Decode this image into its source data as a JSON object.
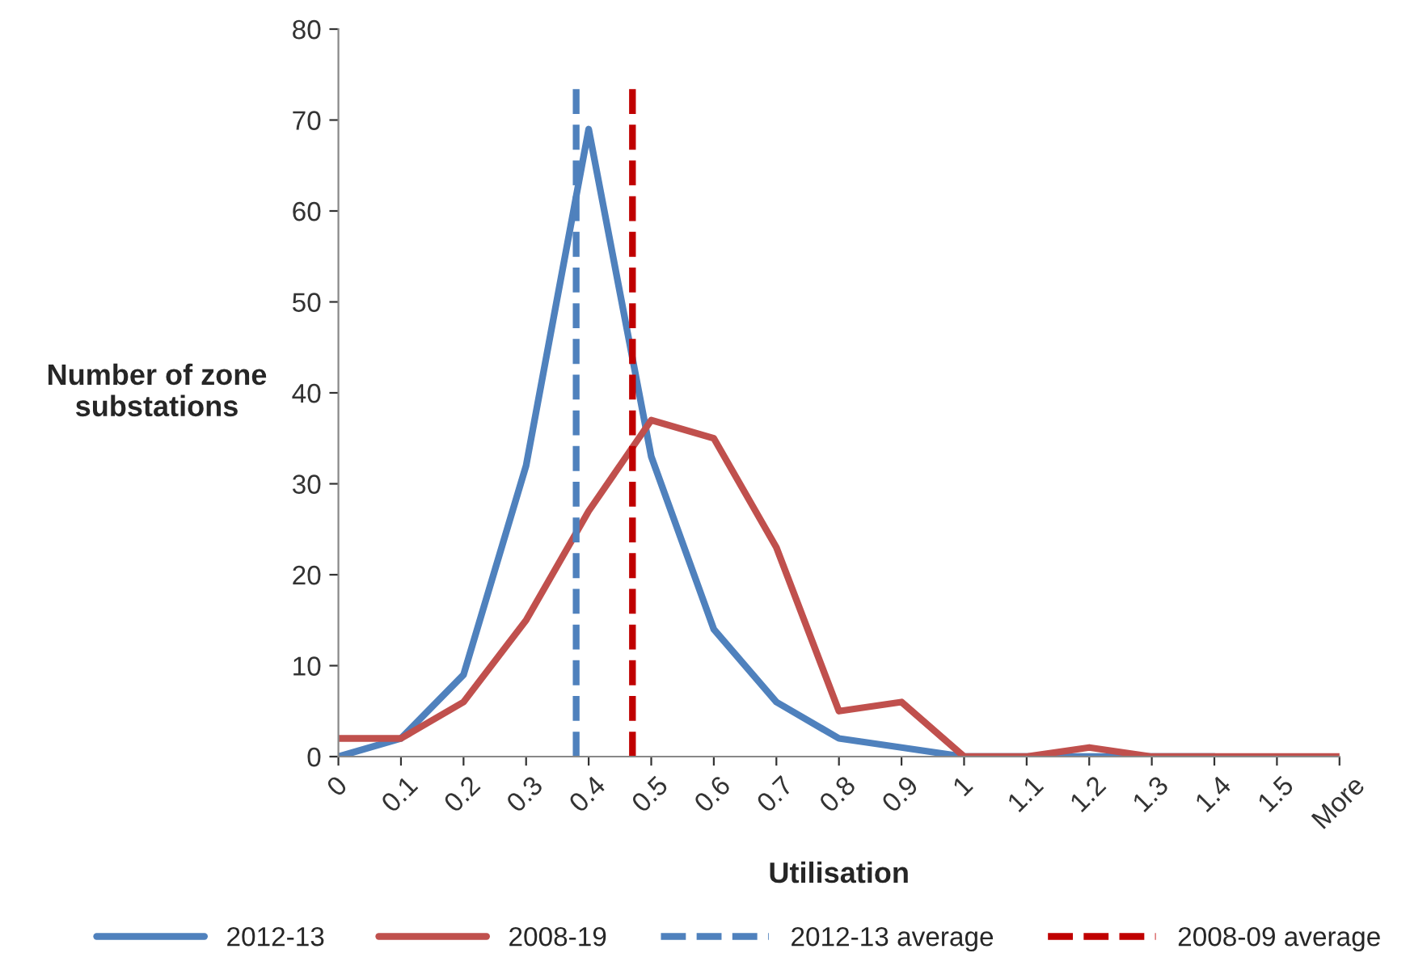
{
  "chart_data": {
    "type": "line",
    "xlabel": "Utilisation",
    "ylabel": "Number of zone\nsubstations",
    "x": [
      0,
      0.1,
      0.2,
      0.3,
      0.4,
      0.5,
      0.6,
      0.7,
      0.8,
      0.9,
      1,
      1.1,
      1.2,
      1.3,
      1.4,
      1.5,
      1.6
    ],
    "series": [
      {
        "name": "2012-13",
        "color": "#4f81bd",
        "values": [
          0,
          2,
          9,
          32,
          69,
          33,
          14,
          6,
          2,
          1,
          0,
          0,
          0,
          0,
          0,
          null,
          null
        ]
      },
      {
        "name": "2008-19",
        "color": "#c0504d",
        "values": [
          2,
          2,
          6,
          15,
          27,
          37,
          35,
          23,
          5,
          6,
          0,
          0,
          1,
          0,
          0,
          0,
          0
        ]
      }
    ],
    "ref_lines": [
      {
        "axis": "x",
        "value": 0.38,
        "label": "2012-13 average",
        "color": "#4f81bd",
        "line_style": "dashed"
      },
      {
        "axis": "x",
        "value": 0.47,
        "label": "2008-09 average",
        "color": "#c00000",
        "line_style": "dashed"
      }
    ],
    "xlim": [
      0,
      1.6
    ],
    "xticks": [
      0,
      0.1,
      0.2,
      0.3,
      0.4,
      0.5,
      0.6,
      0.7,
      0.8,
      0.9,
      1,
      1.1,
      1.2,
      1.3,
      1.4,
      1.5,
      {
        "value": 1.6,
        "label": "More"
      }
    ],
    "ylim": [
      0,
      80
    ],
    "yticks": [
      0,
      10,
      20,
      30,
      40,
      50,
      60,
      70,
      80
    ],
    "grid": false,
    "legend": "bottom",
    "line_style": "solid",
    "marker": "none"
  }
}
